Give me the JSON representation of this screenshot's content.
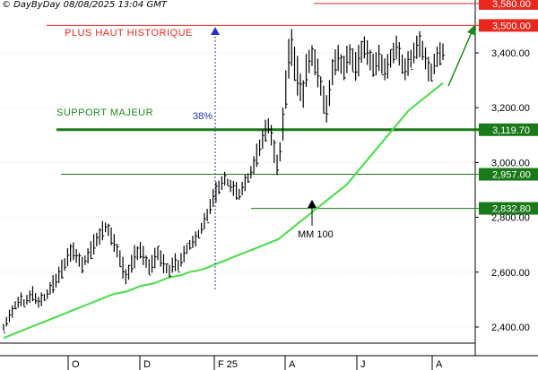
{
  "header": {
    "text": "© DayByDay 08/08/2025  13:04 GMT"
  },
  "chart_data": {
    "type": "bar",
    "title": "",
    "y_ticks": [
      "2,400.00",
      "2,600.00",
      "2,800.00",
      "3,000.00",
      "3,200.00",
      "3,400.00"
    ],
    "y_tick_values": [
      2400,
      2600,
      2800,
      3000,
      3200,
      3400
    ],
    "x_ticks": [
      "O",
      "D",
      "F 25",
      "A",
      "J",
      "A"
    ],
    "ylim": [
      2320,
      3600
    ],
    "levels": [
      {
        "name": "top",
        "label": "3,580.00",
        "value": 3580,
        "color": "#e8271e",
        "style": "thin"
      },
      {
        "name": "record",
        "label": "3,500.00",
        "value": 3500,
        "color": "#e8271e",
        "style": "thin"
      },
      {
        "name": "support-major",
        "label": "3,119.70",
        "value": 3119.7,
        "color": "#1a7a1a",
        "style": "thick"
      },
      {
        "name": "support-2",
        "label": "2,957.00",
        "value": 2957,
        "color": "#1a7a1a",
        "style": "thin"
      },
      {
        "name": "support-3",
        "label": "2,832.80",
        "value": 2832.8,
        "color": "#1a7a1a",
        "style": "thin"
      }
    ],
    "annotations": {
      "record_high": "PLUS HAUT HISTORIQUE",
      "support_major": "SUPPORT MAJEUR",
      "pct": "38%",
      "ma": "MM 100"
    },
    "price_series": [
      [
        2380,
        2420
      ],
      [
        2400,
        2440
      ],
      [
        2420,
        2460
      ],
      [
        2440,
        2470
      ],
      [
        2460,
        2500
      ],
      [
        2470,
        2510
      ],
      [
        2480,
        2520
      ],
      [
        2470,
        2510
      ],
      [
        2480,
        2520
      ],
      [
        2490,
        2530
      ],
      [
        2500,
        2540
      ],
      [
        2480,
        2530
      ],
      [
        2470,
        2510
      ],
      [
        2480,
        2520
      ],
      [
        2490,
        2530
      ],
      [
        2500,
        2540
      ],
      [
        2520,
        2560
      ],
      [
        2530,
        2580
      ],
      [
        2540,
        2600
      ],
      [
        2560,
        2620
      ],
      [
        2580,
        2640
      ],
      [
        2600,
        2660
      ],
      [
        2620,
        2690
      ],
      [
        2640,
        2700
      ],
      [
        2650,
        2700
      ],
      [
        2630,
        2690
      ],
      [
        2620,
        2670
      ],
      [
        2600,
        2650
      ],
      [
        2620,
        2670
      ],
      [
        2630,
        2690
      ],
      [
        2650,
        2710
      ],
      [
        2670,
        2730
      ],
      [
        2690,
        2750
      ],
      [
        2700,
        2760
      ],
      [
        2720,
        2780
      ],
      [
        2740,
        2790
      ],
      [
        2730,
        2780
      ],
      [
        2700,
        2760
      ],
      [
        2680,
        2730
      ],
      [
        2650,
        2710
      ],
      [
        2620,
        2680
      ],
      [
        2580,
        2650
      ],
      [
        2550,
        2620
      ],
      [
        2570,
        2630
      ],
      [
        2600,
        2660
      ],
      [
        2620,
        2690
      ],
      [
        2640,
        2700
      ],
      [
        2650,
        2710
      ],
      [
        2630,
        2690
      ],
      [
        2610,
        2670
      ],
      [
        2590,
        2650
      ],
      [
        2600,
        2660
      ],
      [
        2620,
        2680
      ],
      [
        2640,
        2700
      ],
      [
        2620,
        2680
      ],
      [
        2600,
        2660
      ],
      [
        2590,
        2640
      ],
      [
        2580,
        2630
      ],
      [
        2600,
        2650
      ],
      [
        2610,
        2660
      ],
      [
        2600,
        2650
      ],
      [
        2620,
        2670
      ],
      [
        2640,
        2690
      ],
      [
        2660,
        2710
      ],
      [
        2680,
        2720
      ],
      [
        2690,
        2730
      ],
      [
        2700,
        2740
      ],
      [
        2720,
        2760
      ],
      [
        2740,
        2780
      ],
      [
        2760,
        2810
      ],
      [
        2780,
        2840
      ],
      [
        2810,
        2870
      ],
      [
        2840,
        2900
      ],
      [
        2860,
        2920
      ],
      [
        2880,
        2940
      ],
      [
        2900,
        2950
      ],
      [
        2920,
        2960
      ],
      [
        2910,
        2950
      ],
      [
        2890,
        2940
      ],
      [
        2880,
        2930
      ],
      [
        2870,
        2920
      ],
      [
        2860,
        2910
      ],
      [
        2880,
        2930
      ],
      [
        2900,
        2950
      ],
      [
        2920,
        2970
      ],
      [
        2940,
        2990
      ],
      [
        2960,
        3020
      ],
      [
        2990,
        3060
      ],
      [
        3020,
        3090
      ],
      [
        3050,
        3120
      ],
      [
        3080,
        3150
      ],
      [
        3100,
        3170
      ],
      [
        3060,
        3140
      ],
      [
        3000,
        3080
      ],
      [
        2960,
        3020
      ],
      [
        3000,
        3080
      ],
      [
        3080,
        3200
      ],
      [
        3200,
        3330
      ],
      [
        3300,
        3460
      ],
      [
        3350,
        3490
      ],
      [
        3300,
        3420
      ],
      [
        3250,
        3380
      ],
      [
        3220,
        3330
      ],
      [
        3200,
        3300
      ],
      [
        3280,
        3390
      ],
      [
        3320,
        3420
      ],
      [
        3350,
        3430
      ],
      [
        3320,
        3410
      ],
      [
        3280,
        3370
      ],
      [
        3240,
        3320
      ],
      [
        3180,
        3280
      ],
      [
        3150,
        3240
      ],
      [
        3200,
        3310
      ],
      [
        3280,
        3380
      ],
      [
        3320,
        3410
      ],
      [
        3340,
        3420
      ],
      [
        3320,
        3400
      ],
      [
        3300,
        3390
      ],
      [
        3330,
        3420
      ],
      [
        3350,
        3440
      ],
      [
        3330,
        3420
      ],
      [
        3300,
        3400
      ],
      [
        3320,
        3420
      ],
      [
        3360,
        3450
      ],
      [
        3380,
        3460
      ],
      [
        3360,
        3440
      ],
      [
        3330,
        3420
      ],
      [
        3310,
        3400
      ],
      [
        3320,
        3400
      ],
      [
        3340,
        3420
      ],
      [
        3320,
        3400
      ],
      [
        3300,
        3380
      ],
      [
        3310,
        3390
      ],
      [
        3340,
        3420
      ],
      [
        3360,
        3440
      ],
      [
        3380,
        3460
      ],
      [
        3360,
        3430
      ],
      [
        3320,
        3400
      ],
      [
        3300,
        3380
      ],
      [
        3320,
        3400
      ],
      [
        3340,
        3420
      ],
      [
        3360,
        3440
      ],
      [
        3380,
        3460
      ],
      [
        3390,
        3470
      ],
      [
        3370,
        3450
      ],
      [
        3340,
        3420
      ],
      [
        3300,
        3380
      ],
      [
        3290,
        3370
      ],
      [
        3320,
        3400
      ],
      [
        3350,
        3420
      ],
      [
        3360,
        3430
      ],
      [
        3370,
        3440
      ]
    ],
    "ma_series": [
      2360,
      2370,
      2380,
      2390,
      2400,
      2410,
      2420,
      2430,
      2440,
      2450,
      2460,
      2470,
      2480,
      2490,
      2500,
      2510,
      2520,
      2525,
      2530,
      2540,
      2550,
      2555,
      2560,
      2570,
      2580,
      2585,
      2590,
      2600,
      2605,
      2610,
      2620,
      2630,
      2640,
      2650,
      2660,
      2670,
      2680,
      2690,
      2700,
      2710,
      2720,
      2740,
      2760,
      2780,
      2800,
      2820,
      2840,
      2860,
      2880,
      2900,
      2920,
      2950,
      2980,
      3010,
      3040,
      3070,
      3100,
      3130,
      3160,
      3190,
      3210,
      3230,
      3250,
      3270,
      3290
    ],
    "ma_start_index": 0
  }
}
